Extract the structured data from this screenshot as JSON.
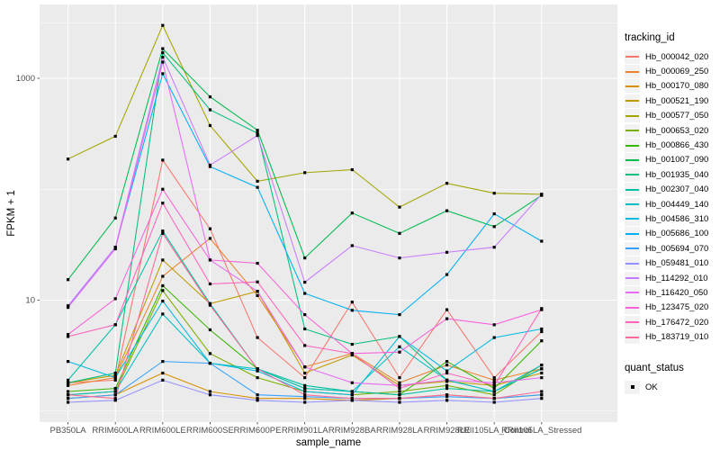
{
  "figure": {
    "background": "#FFFFFF",
    "panel_background": "#EBEBEB",
    "grid_color": "#FFFFFF",
    "tick_label_color": "#4D4D4D",
    "point_color": "#000000"
  },
  "x_axis": {
    "title": "sample_name"
  },
  "y_axis": {
    "title": "FPKM + 1",
    "scale": "log10",
    "tick_values": [
      10,
      1000
    ],
    "tick_labels": [
      "10",
      "1000"
    ],
    "minor_tick_values": [
      1,
      100,
      3162
    ]
  },
  "legend": {
    "tracking_title": "tracking_id",
    "quant_title": "quant_status",
    "quant_items": [
      {
        "label": "OK",
        "marker": "black-square"
      }
    ]
  },
  "chart_data": {
    "type": "line",
    "title": "",
    "xlabel": "sample_name",
    "ylabel": "FPKM + 1",
    "y_scale": "log10",
    "ylim": [
      0.8,
      4500
    ],
    "grid": "on",
    "legend_position": "right",
    "point_marker": "small black square at every vertex",
    "categories": [
      "PB350LA",
      "RRIM600LA",
      "RRIM600LE",
      "RRIM600SE",
      "RRIM600PE",
      "RRIM901LA",
      "RRIM928BA",
      "RRIM928LA",
      "RRIM928LE",
      "RRII105LA_Control",
      "RRII105LA_Stressed"
    ],
    "series": [
      {
        "name": "Hb_000042_020",
        "color": "#F8766D",
        "values": [
          1.8,
          1.9,
          183,
          44,
          4.6,
          2.0,
          9.6,
          2.0,
          8.2,
          2.0,
          5.2
        ]
      },
      {
        "name": "Hb_000069_250",
        "color": "#EA8331",
        "values": [
          1.7,
          2.0,
          16.4,
          36,
          11,
          2.5,
          3.3,
          1.8,
          2.6,
          1.9,
          2.4
        ]
      },
      {
        "name": "Hb_000170_080",
        "color": "#D89000",
        "values": [
          1.3,
          1.4,
          2.2,
          1.5,
          1.3,
          1.3,
          1.25,
          1.3,
          1.4,
          1.3,
          1.4
        ]
      },
      {
        "name": "Hb_000521_190",
        "color": "#C09B00",
        "values": [
          1.8,
          2.1,
          23,
          9.3,
          12,
          2.2,
          3.2,
          1.7,
          1.85,
          1.7,
          2.2
        ]
      },
      {
        "name": "Hb_000577_050",
        "color": "#A3A500",
        "values": [
          187,
          300,
          3000,
          375,
          118,
          141,
          150,
          69,
          113,
          92,
          90
        ]
      },
      {
        "name": "Hb_000653_020",
        "color": "#7CAE00",
        "values": [
          1.4,
          1.5,
          12.2,
          3.3,
          2.0,
          1.5,
          1.4,
          1.5,
          1.7,
          1.4,
          2.6
        ]
      },
      {
        "name": "Hb_000866_430",
        "color": "#39B600",
        "values": [
          1.5,
          1.6,
          13.5,
          5.4,
          2.4,
          1.6,
          1.5,
          1.4,
          2.8,
          1.6,
          4.3
        ]
      },
      {
        "name": "Hb_001007_090",
        "color": "#00BB4E",
        "values": [
          15.3,
          55,
          1850,
          680,
          340,
          24,
          61,
          40,
          64,
          46,
          88
        ]
      },
      {
        "name": "Hb_001935_040",
        "color": "#00BF7D",
        "values": [
          1.8,
          2.2,
          1700,
          520,
          320,
          5.5,
          4.0,
          4.7,
          1.9,
          1.5,
          2.4
        ]
      },
      {
        "name": "Hb_002307_040",
        "color": "#00C1A3",
        "values": [
          1.9,
          6.0,
          42,
          9.3,
          2.4,
          1.7,
          1.5,
          1.4,
          1.6,
          1.5,
          2.4
        ]
      },
      {
        "name": "Hb_004449_140",
        "color": "#00BFC4",
        "values": [
          1.4,
          1.5,
          7.5,
          2.7,
          2.4,
          1.6,
          1.5,
          3.8,
          1.9,
          1.5,
          2.6
        ]
      },
      {
        "name": "Hb_004586_310",
        "color": "#00BAE0",
        "values": [
          2.8,
          2.0,
          9.8,
          2.7,
          2.3,
          1.5,
          1.4,
          4.7,
          2.3,
          4.6,
          5.5
        ]
      },
      {
        "name": "Hb_005686_100",
        "color": "#00B0F6",
        "values": [
          8.8,
          30,
          1100,
          160,
          104,
          11.5,
          8.1,
          7.4,
          17,
          60,
          34
        ]
      },
      {
        "name": "Hb_005694_070",
        "color": "#35A2FF",
        "values": [
          1.3,
          1.4,
          2.8,
          2.7,
          1.4,
          1.35,
          1.3,
          1.3,
          1.35,
          1.3,
          1.4
        ]
      },
      {
        "name": "Hb_059481_010",
        "color": "#9590FF",
        "values": [
          1.2,
          1.25,
          1.9,
          1.4,
          1.25,
          1.2,
          1.25,
          1.2,
          1.25,
          1.2,
          1.3
        ]
      },
      {
        "name": "Hb_114292_010",
        "color": "#C77CFF",
        "values": [
          8.9,
          30,
          1550,
          165,
          305,
          14.5,
          31,
          24,
          27,
          30,
          90
        ]
      },
      {
        "name": "Hb_116420_050",
        "color": "#E76BF3",
        "values": [
          8.6,
          29,
          1400,
          23,
          12,
          2.5,
          1.8,
          1.7,
          1.9,
          1.8,
          2.0
        ]
      },
      {
        "name": "Hb_123475_020",
        "color": "#FA62DB",
        "values": [
          4.9,
          10.3,
          100,
          23,
          21.5,
          7.4,
          3.3,
          3.4,
          6.8,
          6.0,
          8.2
        ]
      },
      {
        "name": "Hb_176472_020",
        "color": "#FF62BC",
        "values": [
          4.7,
          6.0,
          75,
          14,
          14.6,
          3.9,
          3.3,
          1.6,
          2.2,
          1.7,
          8.4
        ]
      },
      {
        "name": "Hb_183719_010",
        "color": "#FF6A98",
        "values": [
          1.4,
          1.3,
          40,
          9.0,
          2.4,
          1.4,
          1.3,
          1.3,
          1.4,
          1.3,
          1.5
        ]
      }
    ]
  }
}
